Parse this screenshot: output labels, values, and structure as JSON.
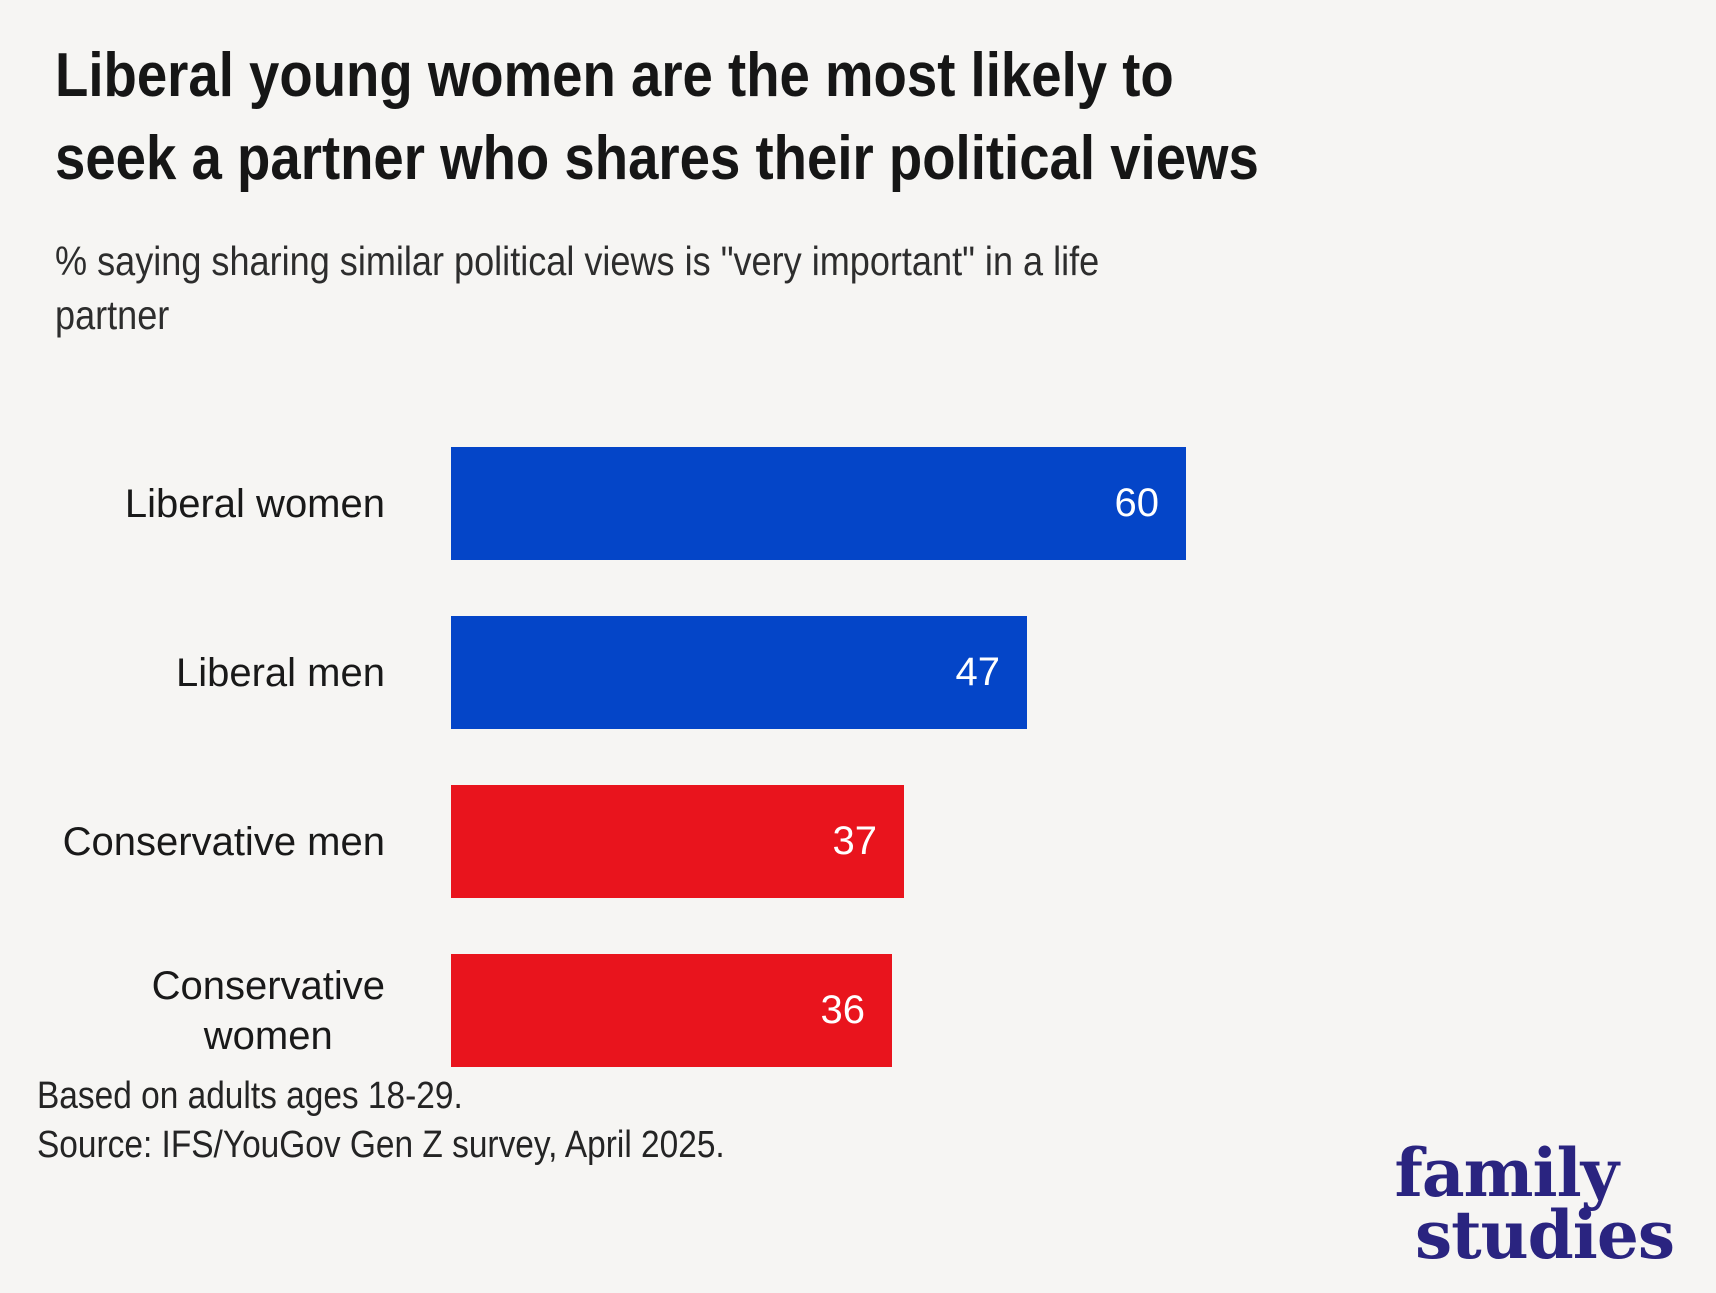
{
  "header": {
    "title_lines": [
      "Liberal young women are the most likely to",
      "seek a partner who shares their political views"
    ],
    "subtitle_lines": [
      "% saying sharing similar political views is \"very important\" in a life",
      "partner"
    ]
  },
  "chart_data": {
    "type": "bar",
    "orientation": "horizontal",
    "title": "Liberal young women are the most likely to seek a partner who shares their political views",
    "subtitle": "% saying sharing similar political views is \"very important\" in a life partner",
    "categories": [
      "Liberal women",
      "Liberal men",
      "Conservative men",
      "Conservative women"
    ],
    "label_lines": [
      [
        "Liberal women"
      ],
      [
        "Liberal men"
      ],
      [
        "Conservative men"
      ],
      [
        "Conservative",
        "women"
      ]
    ],
    "values": [
      60,
      47,
      37,
      36
    ],
    "bar_colors": [
      "#0445C8",
      "#0445C8",
      "#E9141D",
      "#E9141D"
    ],
    "value_label_color": "#FFFFFF",
    "value_label_position": "inside-end",
    "xlim": [
      0,
      60
    ],
    "grid": false,
    "legend": false
  },
  "footer": {
    "note": "Based on adults ages 18-29.",
    "source": "Source: IFS/YouGov Gen Z survey, April 2025."
  },
  "logo": {
    "line1": "family",
    "line2": "studies",
    "color": "#2A2480"
  },
  "theme": {
    "background": "#F6F5F3",
    "blue": "#0445C8",
    "red": "#E9141D",
    "title_color": "#161616",
    "text_color": "#2D2D2D"
  }
}
